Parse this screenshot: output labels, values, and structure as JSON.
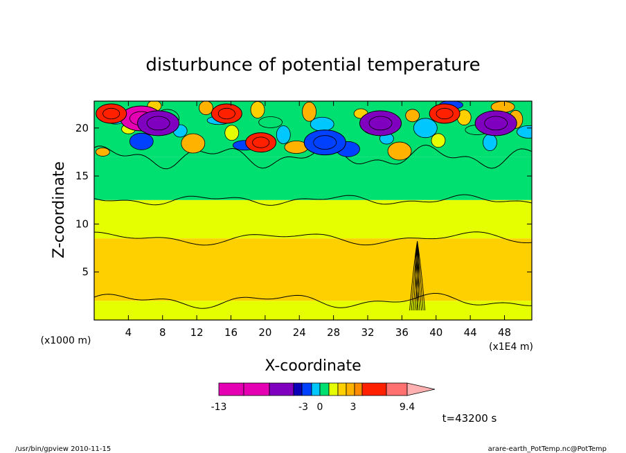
{
  "chart_data": {
    "type": "heatmap",
    "title": "disturbunce of potential temperature",
    "xlabel": "X-coordinate",
    "ylabel": "Z-coordinate",
    "x_unit": "(x1000 m)",
    "x_scale_note": "(x1E4 m)",
    "x_ticks": [
      4,
      8,
      12,
      16,
      20,
      24,
      28,
      32,
      36,
      40,
      44,
      48
    ],
    "y_ticks": [
      5,
      10,
      15,
      20
    ],
    "xlim": [
      0,
      51.2
    ],
    "ylim": [
      0,
      22.8
    ],
    "colorbar": {
      "colors": [
        "#e600b4",
        "#e600b4",
        "#8000c0",
        "#0a00b8",
        "#0040ff",
        "#00c8ff",
        "#00e070",
        "#e6ff00",
        "#ffd000",
        "#ffb300",
        "#ff8c00",
        "#ff2000",
        "#ff7070",
        "#ffb0b0"
      ],
      "tick_labels": [
        "-13",
        "-3",
        "0",
        "3",
        "9.4"
      ],
      "tick_values": [
        -13,
        -3,
        0,
        3,
        9.4
      ]
    },
    "bands": [
      {
        "z": [
          0,
          2
        ],
        "level": "yellow"
      },
      {
        "z": [
          2,
          8.5
        ],
        "level": "orange"
      },
      {
        "z": [
          8.5,
          12.5
        ],
        "level": "yellow"
      },
      {
        "z": [
          12.5,
          17
        ],
        "level": "green"
      },
      {
        "z": [
          17,
          22.8
        ],
        "level": "mixed"
      }
    ],
    "notable_features": [
      {
        "x": 5.5,
        "z": 21,
        "level": "magenta"
      },
      {
        "x": 7.5,
        "z": 20.5,
        "level": "purple"
      },
      {
        "x": 2,
        "z": 21.5,
        "level": "red"
      },
      {
        "x": 15.5,
        "z": 21.5,
        "level": "red"
      },
      {
        "x": 19.5,
        "z": 18.5,
        "level": "red"
      },
      {
        "x": 33.5,
        "z": 20.5,
        "level": "purple"
      },
      {
        "x": 41,
        "z": 21.5,
        "level": "red"
      },
      {
        "x": 47,
        "z": 20.5,
        "level": "purple"
      },
      {
        "x": 27,
        "z": 18.5,
        "level": "blue"
      },
      {
        "x": 37.8,
        "z": 5,
        "level": "dark-contours"
      }
    ]
  },
  "time_label": "t=43200 s",
  "footer": {
    "left": "/usr/bin/gpview  2010-11-15",
    "right": "arare-earth_PotTemp.nc@PotTemp"
  }
}
